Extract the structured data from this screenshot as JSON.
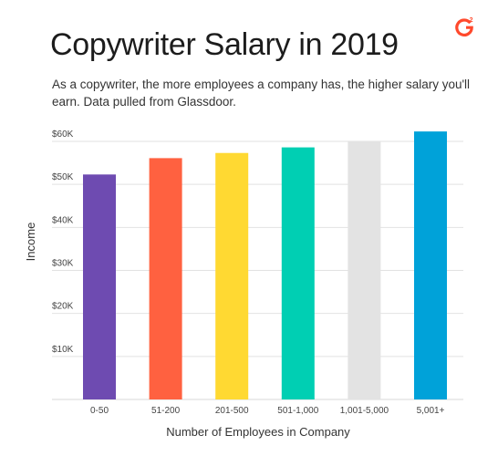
{
  "header": {
    "title": "Copywriter Salary in 2019",
    "subtitle": "As a copywriter, the more employees a company has, the higher salary you'll earn. Data pulled from Glassdoor.",
    "logo_text": "G2",
    "logo_color": "#ff492c"
  },
  "chart_data": {
    "type": "bar",
    "categories": [
      "0-50",
      "51-200",
      "201-500",
      "501-1,000",
      "1,001-5,000",
      "5,001+"
    ],
    "values": [
      52300,
      56100,
      57300,
      58600,
      60000,
      62300
    ],
    "colors": [
      "#6e4bb1",
      "#ff6140",
      "#ffd932",
      "#00cfb3",
      "#e3e3e3",
      "#00a2d9"
    ],
    "title": "Copywriter Salary in 2019",
    "xlabel": "Number of Employees in Company",
    "ylabel": "Income",
    "ylim": [
      0,
      60000
    ],
    "yticks": [
      10000,
      20000,
      30000,
      40000,
      50000,
      60000
    ],
    "ytick_labels": [
      "$10K",
      "$20K",
      "$30K",
      "$40K",
      "$50K",
      "$60K"
    ],
    "grid": true
  }
}
